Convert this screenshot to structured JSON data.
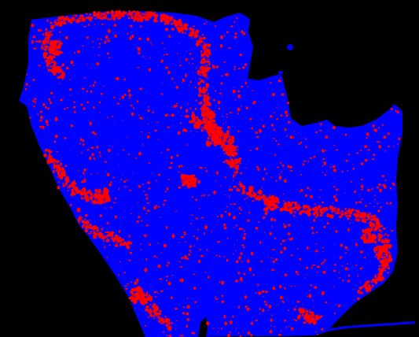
{
  "image": {
    "kind": "segmentation-mask",
    "colors": {
      "background": "#000000",
      "region": "#0000ff",
      "highlight": "#ff0000"
    },
    "highlight_pattern": "scattered-speckle-with-curved-bands"
  }
}
